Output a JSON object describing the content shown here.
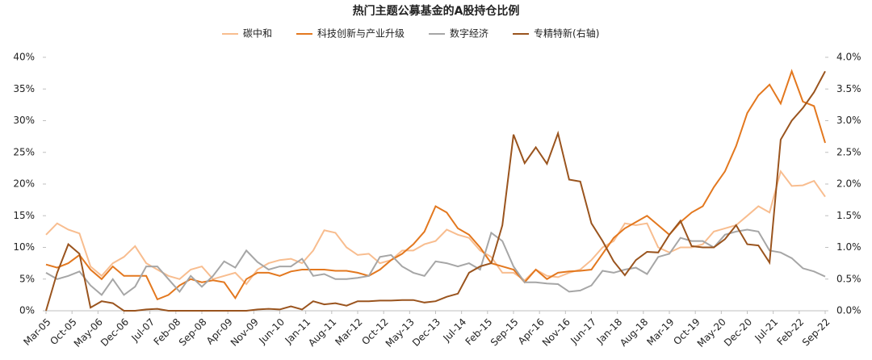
{
  "chart_data": {
    "type": "line",
    "title": "热门主题公募基金的A股持仓比例",
    "x": [
      "Mar-05",
      "Jun-05",
      "Sep-05",
      "Dec-05",
      "Mar-06",
      "Jun-06",
      "Sep-06",
      "Dec-06",
      "Mar-07",
      "Jun-07",
      "Sep-07",
      "Dec-07",
      "Mar-08",
      "Jun-08",
      "Sep-08",
      "Dec-08",
      "Mar-09",
      "Jun-09",
      "Sep-09",
      "Dec-09",
      "Mar-10",
      "Jun-10",
      "Sep-10",
      "Dec-10",
      "Mar-11",
      "Jun-11",
      "Sep-11",
      "Dec-11",
      "Mar-12",
      "Jun-12",
      "Sep-12",
      "Dec-12",
      "Mar-13",
      "Jun-13",
      "Sep-13",
      "Dec-13",
      "Mar-14",
      "Jun-14",
      "Sep-14",
      "Dec-14",
      "Mar-15",
      "Jun-15",
      "Sep-15",
      "Dec-15",
      "Mar-16",
      "Jun-16",
      "Sep-16",
      "Dec-16",
      "Mar-17",
      "Jun-17",
      "Sep-17",
      "Dec-17",
      "Mar-18",
      "Jun-18",
      "Sep-18",
      "Dec-18",
      "Mar-19",
      "Jun-19",
      "Sep-19",
      "Dec-19",
      "Mar-20",
      "Jun-20",
      "Sep-20",
      "Dec-20",
      "Mar-21",
      "Jun-21",
      "Sep-21",
      "Dec-21",
      "Mar-22",
      "Jun-22",
      "Sep-22"
    ],
    "xticks": [
      "Mar-05",
      "Oct-05",
      "May-06",
      "Dec-06",
      "Jul-07",
      "Feb-08",
      "Sep-08",
      "Apr-09",
      "Nov-09",
      "Jun-10",
      "Jan-11",
      "Aug-11",
      "Mar-12",
      "Oct-12",
      "May-13",
      "Dec-13",
      "Jul-14",
      "Feb-15",
      "Sep-15",
      "Apr-16",
      "Nov-16",
      "Jun-17",
      "Jan-18",
      "Aug-18",
      "Mar-19",
      "Oct-19",
      "May-20",
      "Dec-20",
      "Jul-21",
      "Feb-22",
      "Sep-22"
    ],
    "series": [
      {
        "name": "碳中和",
        "color": "#f8bd8f",
        "values": [
          12,
          13.8,
          12.8,
          12.2,
          7,
          5.5,
          7.5,
          8.5,
          10.2,
          7.5,
          6.5,
          5.5,
          5,
          6.5,
          7,
          5,
          5.5,
          6,
          4.2,
          6.5,
          7.5,
          8,
          8.2,
          7.5,
          9.5,
          12.7,
          12.3,
          10,
          8.8,
          9,
          7.5,
          8,
          9.5,
          9.5,
          10.5,
          11,
          12.8,
          12,
          11.5,
          9.5,
          8.5,
          6,
          6,
          4.8,
          6.5,
          5.5,
          5.3,
          6,
          6.5,
          8,
          10,
          11,
          13.8,
          13.5,
          13.8,
          10,
          9.2,
          10,
          10,
          10.5,
          12.5,
          13,
          13.5,
          15,
          16.5,
          15.5,
          22,
          19.7,
          19.8,
          20.5,
          18
        ]
      },
      {
        "name": "科技创新与产业升级",
        "color": "#e3781f",
        "values": [
          7.3,
          6.8,
          7.5,
          8.8,
          6.5,
          5,
          7,
          5.5,
          5.5,
          5.5,
          1.8,
          2.5,
          4,
          5,
          4.5,
          4.8,
          4.5,
          2,
          5,
          6,
          6,
          5.5,
          6.2,
          6.5,
          6.5,
          6.5,
          6.3,
          6.3,
          6,
          5.5,
          6.5,
          8,
          9,
          10.5,
          12.5,
          16.5,
          15.5,
          13,
          12,
          10,
          7.5,
          7,
          6.5,
          4.5,
          6.5,
          5,
          6,
          6.2,
          6.3,
          6.5,
          9,
          11.5,
          13,
          14,
          15,
          13.5,
          12,
          14,
          15.5,
          16.5,
          19.5,
          22,
          26,
          31.2,
          34,
          35.7,
          32.7,
          37.8,
          33,
          32.3,
          26.5
        ]
      },
      {
        "name": "数字经济",
        "color": "#a6a6a6",
        "values": [
          6,
          5,
          5.5,
          6.2,
          4,
          2.5,
          5,
          2.5,
          3.8,
          7,
          7,
          5,
          3,
          5.5,
          3.8,
          5.5,
          7.8,
          6.8,
          9.5,
          7.7,
          6.5,
          7,
          7,
          8.2,
          5.5,
          5.8,
          5,
          5,
          5.2,
          5.5,
          8.5,
          8.8,
          7,
          6,
          5.5,
          7.8,
          7.5,
          7,
          7.5,
          6.5,
          12.3,
          11,
          7,
          4.5,
          4.5,
          4.3,
          4.2,
          3,
          3.2,
          4,
          6.3,
          6,
          6.5,
          6.8,
          5.8,
          8.5,
          9,
          11.5,
          11,
          11,
          10,
          12,
          12.5,
          12.8,
          12.5,
          9.5,
          9.2,
          8.3,
          6.7,
          6.2,
          5.4
        ]
      },
      {
        "name": "专精特新(右轴)",
        "color": "#9a541e",
        "axis": "y2",
        "values": [
          0,
          0.6,
          1.05,
          0.9,
          0.05,
          0.15,
          0.12,
          0,
          0,
          0.02,
          0.03,
          0,
          0,
          0,
          0,
          0,
          0,
          0,
          0,
          0.02,
          0.03,
          0.02,
          0.07,
          0.02,
          0.15,
          0.1,
          0.12,
          0.08,
          0.15,
          0.15,
          0.16,
          0.16,
          0.17,
          0.17,
          0.13,
          0.15,
          0.22,
          0.27,
          0.6,
          0.7,
          0.75,
          1.35,
          2.78,
          2.33,
          2.58,
          2.32,
          2.8,
          2.07,
          2.04,
          1.38,
          1.1,
          0.78,
          0.56,
          0.8,
          0.93,
          0.92,
          1.2,
          1.42,
          1.02,
          1,
          1,
          1.13,
          1.35,
          1.05,
          1.03,
          0.76,
          2.7,
          3,
          3.2,
          3.45,
          3.78
        ]
      }
    ],
    "ylim": [
      0,
      40
    ],
    "yticks": [
      {
        "value": 0,
        "label": "0%"
      },
      {
        "value": 5,
        "label": "5%"
      },
      {
        "value": 10,
        "label": "10%"
      },
      {
        "value": 15,
        "label": "15%"
      },
      {
        "value": 20,
        "label": "20%"
      },
      {
        "value": 25,
        "label": "25%"
      },
      {
        "value": 30,
        "label": "30%"
      },
      {
        "value": 35,
        "label": "35%"
      },
      {
        "value": 40,
        "label": "40%"
      }
    ],
    "y2lim": [
      0,
      4
    ],
    "y2ticks": [
      {
        "value": 0,
        "label": "0.0%"
      },
      {
        "value": 0.5,
        "label": "0.5%"
      },
      {
        "value": 1,
        "label": "1.0%"
      },
      {
        "value": 1.5,
        "label": "1.5%"
      },
      {
        "value": 2,
        "label": "2.0%"
      },
      {
        "value": 2.5,
        "label": "2.5%"
      },
      {
        "value": 3,
        "label": "3.0%"
      },
      {
        "value": 3.5,
        "label": "3.5%"
      },
      {
        "value": 4,
        "label": "4.0%"
      }
    ],
    "legend": "top"
  }
}
